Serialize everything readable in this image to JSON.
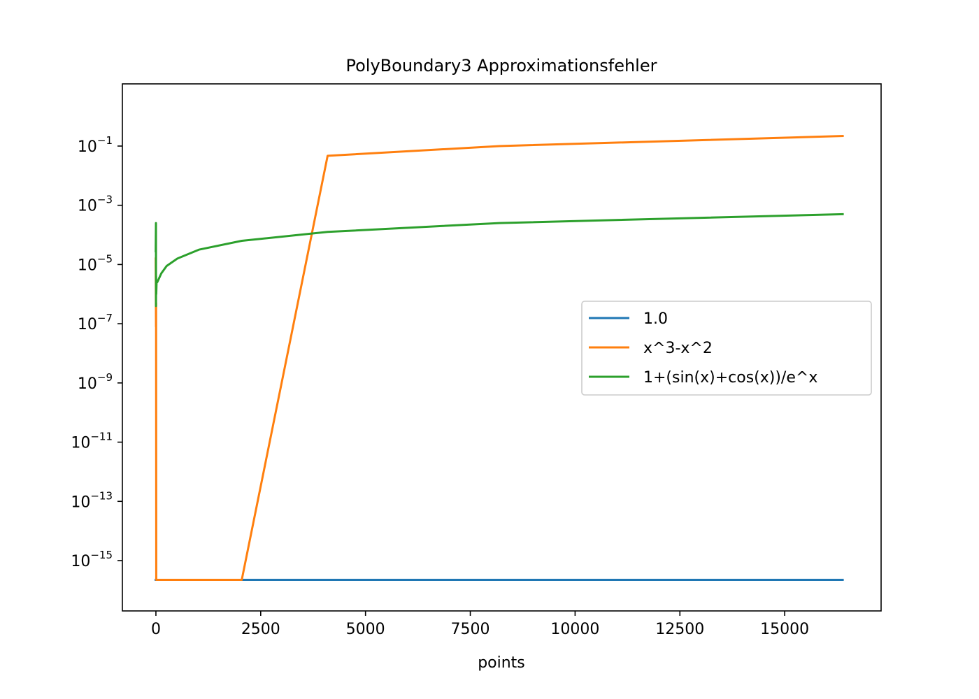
{
  "chart_data": {
    "type": "line",
    "title": "PolyBoundary3 Approximationsfehler",
    "xlabel": "points",
    "ylabel": "",
    "xlim": [
      -800,
      17300
    ],
    "ylim_log10": [
      -16.7,
      1.1
    ],
    "yscale": "log",
    "grid": false,
    "legend_position": "center-right",
    "x_ticks": [
      {
        "value": 0,
        "label": "0"
      },
      {
        "value": 2500,
        "label": "2500"
      },
      {
        "value": 5000,
        "label": "5000"
      },
      {
        "value": 7500,
        "label": "7500"
      },
      {
        "value": 10000,
        "label": "10000"
      },
      {
        "value": 12500,
        "label": "12500"
      },
      {
        "value": 15000,
        "label": "15000"
      }
    ],
    "y_ticks": [
      {
        "exp": -1,
        "base": "10",
        "sup": "−1"
      },
      {
        "exp": -3,
        "base": "10",
        "sup": "−3"
      },
      {
        "exp": -5,
        "base": "10",
        "sup": "−5"
      },
      {
        "exp": -7,
        "base": "10",
        "sup": "−7"
      },
      {
        "exp": -9,
        "base": "10",
        "sup": "−9"
      },
      {
        "exp": -11,
        "base": "10",
        "sup": "−11"
      },
      {
        "exp": -13,
        "base": "10",
        "sup": "−13"
      },
      {
        "exp": -15,
        "base": "10",
        "sup": "−15"
      }
    ],
    "series": [
      {
        "name": "1.0",
        "color": "#1f77b4",
        "points": [
          [
            -5,
            -15.65
          ],
          [
            -5,
            -15.65
          ],
          [
            16384,
            -15.65
          ]
        ]
      },
      {
        "name": "x^3-x^2",
        "color": "#ff7f0e",
        "points": [
          [
            -5,
            -4.8
          ],
          [
            2,
            -7.1
          ],
          [
            4,
            -6.3
          ],
          [
            8,
            -15.65
          ],
          [
            16,
            -15.65
          ],
          [
            32,
            -15.65
          ],
          [
            64,
            -15.65
          ],
          [
            128,
            -15.65
          ],
          [
            256,
            -15.65
          ],
          [
            512,
            -15.65
          ],
          [
            1024,
            -15.65
          ],
          [
            2048,
            -15.65
          ],
          [
            4096,
            -1.33
          ],
          [
            8192,
            -1.0
          ],
          [
            16384,
            -0.66
          ]
        ]
      },
      {
        "name": "1+(sin(x)+cos(x))/e^x",
        "color": "#2ca02c",
        "points": [
          [
            -5,
            -4.55
          ],
          [
            1,
            -3.6
          ],
          [
            2,
            -6.4
          ],
          [
            4,
            -5.4
          ],
          [
            8,
            -6.0
          ],
          [
            16,
            -5.6
          ],
          [
            32,
            -5.6
          ],
          [
            64,
            -5.5
          ],
          [
            128,
            -5.3
          ],
          [
            256,
            -5.05
          ],
          [
            512,
            -4.8
          ],
          [
            1024,
            -4.5
          ],
          [
            2048,
            -4.2
          ],
          [
            4096,
            -3.9
          ],
          [
            8192,
            -3.6
          ],
          [
            16384,
            -3.3
          ]
        ]
      }
    ]
  }
}
